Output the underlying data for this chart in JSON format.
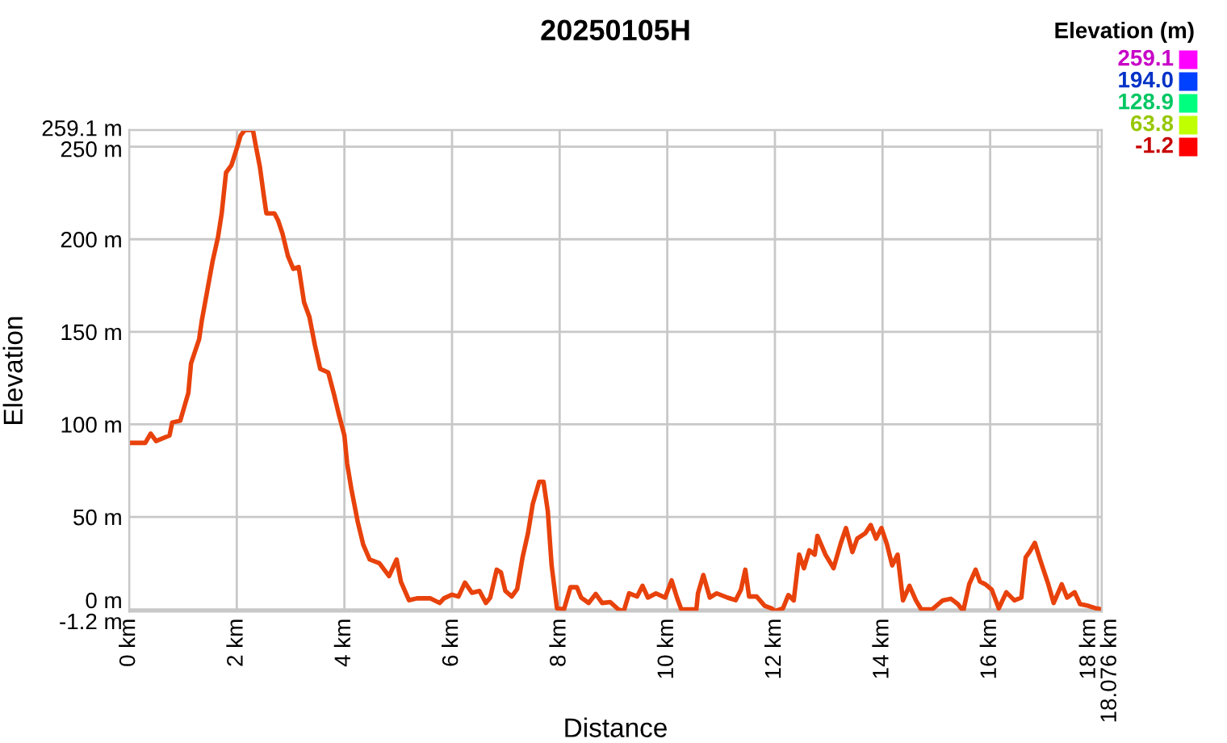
{
  "chart_data": {
    "type": "line",
    "title": "20250105H",
    "xlabel": "Distance",
    "ylabel": "Elevation",
    "clabel": "Elevation (m)",
    "cticks": [
      259.1,
      {
        "value": 194,
        "label": "194.0"
      },
      128.9,
      63.8,
      -1.2
    ],
    "xlim": [
      0,
      18.076
    ],
    "ylim": [
      -1.2,
      259.1
    ],
    "grid": true,
    "xticks": [
      {
        "value": 0,
        "label": "0 km"
      },
      {
        "value": 2,
        "label": "2 km"
      },
      {
        "value": 4,
        "label": "4 km"
      },
      {
        "value": 6,
        "label": "6 km"
      },
      {
        "value": 8,
        "label": "8 km"
      },
      {
        "value": 10,
        "label": "10 km"
      },
      {
        "value": 12,
        "label": "12 km"
      },
      {
        "value": 14,
        "label": "14 km"
      },
      {
        "value": 16,
        "label": "16 km"
      },
      {
        "value": 18,
        "label": "18 km"
      },
      {
        "value": 18.076,
        "label": "18.076 km"
      }
    ],
    "yticks": [
      {
        "value": -1.2,
        "label": "-1.2 m"
      },
      {
        "value": 0,
        "label": "0 m"
      },
      {
        "value": 50,
        "label": "50 m"
      },
      {
        "value": 100,
        "label": "100 m"
      },
      {
        "value": 150,
        "label": "150 m"
      },
      {
        "value": 200,
        "label": "200 m"
      },
      {
        "value": 250,
        "label": "250 m"
      },
      {
        "value": 259.1,
        "label": "259.1 m"
      }
    ],
    "x": [
      0,
      0.3,
      0.4,
      0.5,
      0.75,
      0.8,
      0.95,
      1.1,
      1.15,
      1.3,
      1.35,
      1.45,
      1.55,
      1.65,
      1.72,
      1.8,
      1.9,
      2.0,
      2.07,
      2.15,
      2.3,
      2.35,
      2.43,
      2.5,
      2.55,
      2.7,
      2.77,
      2.85,
      2.95,
      3.05,
      3.15,
      3.25,
      3.35,
      3.45,
      3.55,
      3.7,
      3.8,
      3.9,
      4.0,
      4.05,
      4.13,
      4.25,
      4.35,
      4.47,
      4.65,
      4.83,
      4.97,
      5.05,
      5.2,
      5.35,
      5.6,
      5.77,
      5.85,
      6.0,
      6.12,
      6.24,
      6.37,
      6.51,
      6.63,
      6.71,
      6.83,
      6.91,
      6.99,
      7.11,
      7.21,
      7.31,
      7.41,
      7.5,
      7.62,
      7.7,
      7.78,
      7.85,
      7.95,
      8.08,
      8.2,
      8.32,
      8.4,
      8.54,
      8.67,
      8.79,
      8.94,
      9.09,
      9.19,
      9.29,
      9.44,
      9.54,
      9.64,
      9.79,
      9.96,
      10.08,
      10.18,
      10.26,
      10.54,
      10.57,
      10.67,
      10.79,
      10.92,
      11.12,
      11.27,
      11.37,
      11.45,
      11.52,
      11.66,
      11.81,
      11.94,
      12.0,
      12.15,
      12.25,
      12.35,
      12.45,
      12.54,
      12.64,
      12.74,
      12.79,
      12.94,
      13.09,
      13.22,
      13.32,
      13.44,
      13.53,
      13.68,
      13.78,
      13.88,
      13.98,
      14.08,
      14.18,
      14.28,
      14.38,
      14.5,
      14.62,
      14.72,
      14.92,
      15.12,
      15.27,
      15.4,
      15.5,
      15.61,
      15.73,
      15.81,
      15.91,
      16.03,
      16.16,
      16.3,
      16.45,
      16.58,
      16.66,
      16.73,
      16.83,
      16.93,
      17.08,
      17.18,
      17.33,
      17.43,
      17.57,
      17.67,
      17.82,
      17.97,
      18.076
    ],
    "color": "#e8420c",
    "values": [
      90,
      90,
      95,
      91,
      94,
      101,
      102,
      117,
      133,
      146,
      156,
      172,
      188,
      201,
      214,
      236,
      240,
      249,
      256,
      259,
      259,
      251,
      239,
      224,
      214,
      214,
      210,
      203,
      191,
      184,
      185,
      166,
      158,
      143,
      130,
      128,
      117,
      105,
      94,
      79,
      65,
      47,
      35,
      27,
      25,
      18,
      27,
      15,
      5,
      6,
      6,
      3.5,
      6,
      8,
      7,
      14.5,
      9,
      10,
      3.5,
      6.4,
      21.5,
      20,
      10,
      7,
      11,
      28,
      41,
      57,
      69,
      69,
      53,
      24,
      0.6,
      0,
      12,
      12,
      6.4,
      3.5,
      8.4,
      3.5,
      4,
      0,
      -1,
      8.7,
      7,
      12.8,
      6.4,
      8.7,
      6.4,
      15.7,
      6.4,
      0,
      0,
      8.7,
      18.6,
      6.4,
      8.7,
      6.4,
      5,
      10.8,
      21.5,
      7,
      7,
      2,
      0.6,
      -0.9,
      0.6,
      7.8,
      4.9,
      29.6,
      22.3,
      32,
      29.6,
      39.8,
      29.6,
      22.3,
      35.4,
      44,
      31,
      38.3,
      41.2,
      45.6,
      38.3,
      44,
      35.4,
      23.8,
      29.6,
      4.9,
      12.8,
      4.9,
      0,
      0,
      4.9,
      5.8,
      2.9,
      -0.9,
      13.6,
      21.5,
      15.1,
      13.6,
      10.7,
      0.6,
      9.3,
      4.9,
      6.4,
      28.2,
      31,
      36,
      26.7,
      13.6,
      3.5,
      13.6,
      6.4,
      9.3,
      2.9,
      2,
      0.6,
      0
    ]
  }
}
